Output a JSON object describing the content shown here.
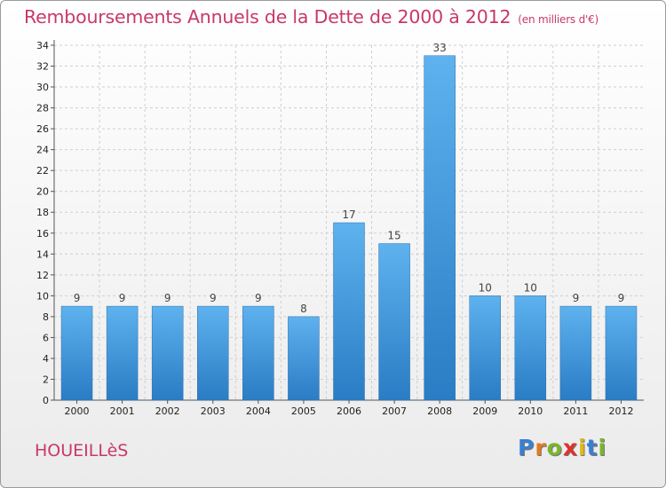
{
  "chart_data": {
    "type": "bar",
    "title": "Remboursements Annuels de la Dette de 2000 à 2012",
    "unit_note": "(en milliers d'€)",
    "categories": [
      "2000",
      "2001",
      "2002",
      "2003",
      "2004",
      "2005",
      "2006",
      "2007",
      "2008",
      "2009",
      "2010",
      "2011",
      "2012"
    ],
    "values": [
      9,
      9,
      9,
      9,
      9,
      8,
      17,
      15,
      33,
      10,
      10,
      9,
      9
    ],
    "ylim": [
      0,
      34
    ],
    "yticks": [
      0,
      2,
      4,
      6,
      8,
      10,
      12,
      14,
      16,
      18,
      20,
      22,
      24,
      26,
      28,
      30,
      32,
      34
    ],
    "grid": true,
    "bar_color": "#3a8fd6",
    "title_color": "#c8386a"
  },
  "footer": {
    "place": "HOUEILLèS",
    "logo_letters": [
      {
        "ch": "P",
        "color": "#3a7fd0"
      },
      {
        "ch": "r",
        "color": "#e07b22"
      },
      {
        "ch": "o",
        "color": "#7ab52e"
      },
      {
        "ch": "x",
        "color": "#e0322a"
      },
      {
        "ch": "i",
        "color": "#e2b81c"
      },
      {
        "ch": "t",
        "color": "#3a7fd0"
      },
      {
        "ch": "i",
        "color": "#7ab52e"
      }
    ]
  }
}
